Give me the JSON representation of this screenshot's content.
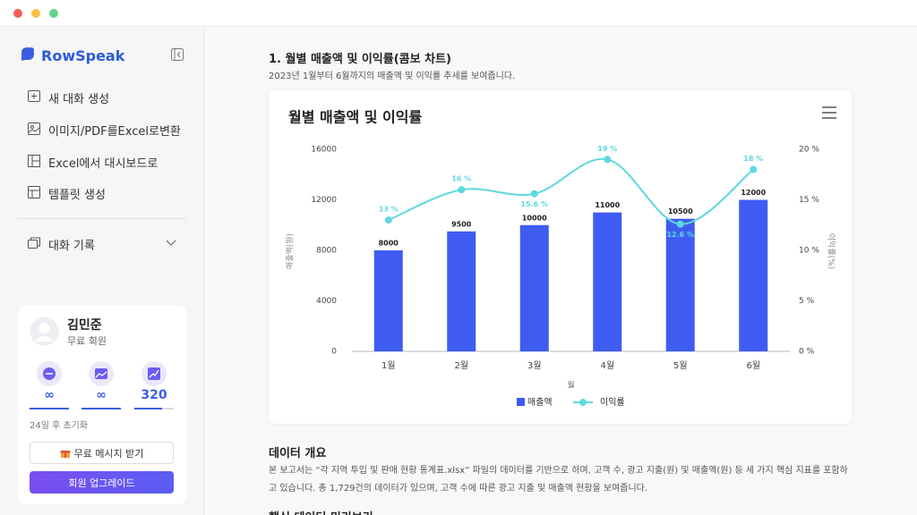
{
  "app": {
    "name": "RowSpeak"
  },
  "sidebar": {
    "menu": [
      "새 대화 생성",
      "이미지/PDF를Excel로변환",
      "Excel에서 대시보드로",
      "템플릿 생성"
    ],
    "history": "대화 기록"
  },
  "user": {
    "name": "김민준",
    "plan": "무료 회원",
    "stats": [
      "∞",
      "∞",
      "320"
    ],
    "reset": "24일 후 초기화",
    "free_button": "무료 메시지 받기",
    "upgrade_button": "회원 업그레이드"
  },
  "content": {
    "section_title": "1. 월별 매출액 및 이익률(콤보 차트)",
    "section_desc": "2023년 1월부터 6월까지의 매출액 및 이익률 추세를 보여줍니다.",
    "overview_title": "데이터 개요",
    "overview_text": "본 보고서는 “각 지역 투입 및 판매 현황 통계표.xlsx” 파일의 데이터를 기반으로 하며, 고객 수, 광고 지출(원) 및 매출액(원) 등 세 가지 핵심 지표를 포함하고 있습니다. 총 1,729건의 데이터가 있으며, 고객 수에 따른 광고 지출 및 매출액 현황을 보여줍니다.",
    "next_title": "핵심 데이터 미리보기"
  },
  "chart_data": {
    "type": "combo",
    "title": "월별 매출액 및 이익률",
    "categories": [
      "1월",
      "2월",
      "3월",
      "4월",
      "5월",
      "6월"
    ],
    "series": [
      {
        "name": "매출액",
        "type": "bar",
        "color": "#3f5cf2",
        "values": [
          8000,
          9500,
          10000,
          11000,
          10500,
          12000
        ]
      },
      {
        "name": "이익률",
        "type": "line",
        "axis": "y2",
        "color": "#5ed8e0",
        "values": [
          13,
          16,
          15.6,
          19,
          12.6,
          18
        ],
        "value_labels": [
          "13 %",
          "16 %",
          "15.6 %",
          "19 %",
          "12.6 %",
          "18 %"
        ]
      }
    ],
    "xlabel": "월",
    "ylabel": "매출액(원)",
    "y2label": "이익률(%)",
    "ylim": [
      0,
      16000
    ],
    "yticks": [
      0,
      4000,
      8000,
      12000,
      16000
    ],
    "y2lim": [
      0,
      20
    ],
    "y2ticks": [
      {
        "value": 0,
        "label": "0 %"
      },
      {
        "value": 5,
        "label": "5 %"
      },
      {
        "value": 10,
        "label": "10 %"
      },
      {
        "value": 15,
        "label": "15 %"
      },
      {
        "value": 20,
        "label": "20 %"
      }
    ],
    "grid": false,
    "legend": "bottom"
  }
}
